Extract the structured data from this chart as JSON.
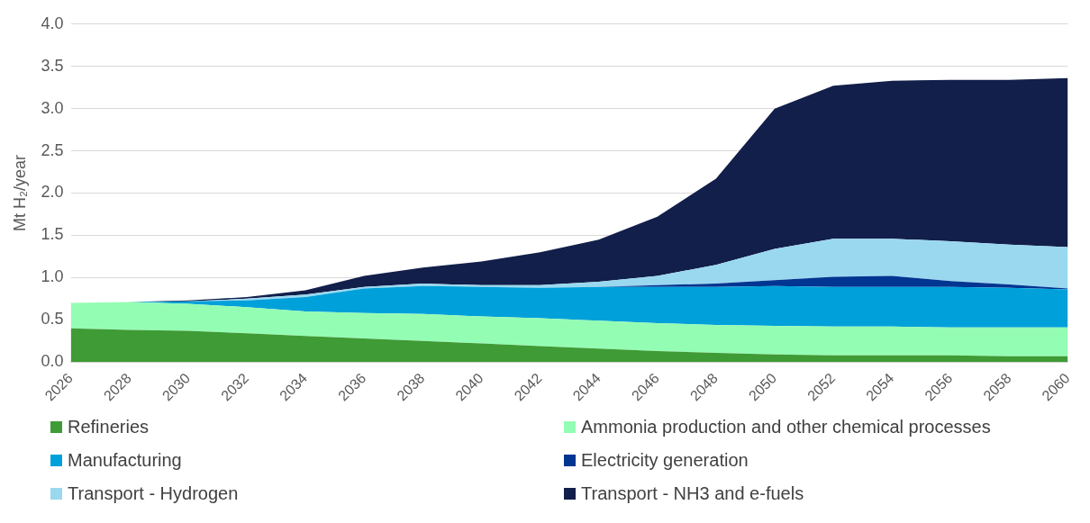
{
  "chart_data": {
    "type": "area",
    "stacked": true,
    "ylabel": "Mt H₂/year",
    "categories": [
      "2026",
      "2028",
      "2030",
      "2032",
      "2034",
      "2036",
      "2038",
      "2040",
      "2042",
      "2044",
      "2046",
      "2048",
      "2050",
      "2052",
      "2054",
      "2056",
      "2058",
      "2060"
    ],
    "ylim": [
      0,
      4
    ],
    "yticks": [
      {
        "value": 0,
        "label": "0.0"
      },
      {
        "value": 0.5,
        "label": "0.5"
      },
      {
        "value": 1,
        "label": "1.0"
      },
      {
        "value": 1.5,
        "label": "1.5"
      },
      {
        "value": 2,
        "label": "2.0"
      },
      {
        "value": 2.5,
        "label": "2.5"
      },
      {
        "value": 3,
        "label": "3.0"
      },
      {
        "value": 3.5,
        "label": "3.5"
      },
      {
        "value": 4,
        "label": "4.0"
      }
    ],
    "grid": "y",
    "legend": "bottom",
    "series": [
      {
        "name": "Refineries",
        "color": "#3f9b35",
        "values": [
          0.4,
          0.38,
          0.37,
          0.34,
          0.31,
          0.28,
          0.25,
          0.22,
          0.19,
          0.16,
          0.13,
          0.11,
          0.09,
          0.08,
          0.08,
          0.08,
          0.07,
          0.07
        ]
      },
      {
        "name": "Ammonia production and other chemical processes",
        "color": "#94fdb4",
        "values": [
          0.3,
          0.33,
          0.32,
          0.31,
          0.29,
          0.3,
          0.32,
          0.32,
          0.33,
          0.33,
          0.33,
          0.33,
          0.34,
          0.34,
          0.34,
          0.33,
          0.34,
          0.34
        ]
      },
      {
        "name": "Manufacturing",
        "color": "#00a0da",
        "values": [
          0,
          0,
          0.03,
          0.08,
          0.17,
          0.29,
          0.33,
          0.35,
          0.36,
          0.4,
          0.43,
          0.45,
          0.47,
          0.47,
          0.47,
          0.48,
          0.47,
          0.45
        ]
      },
      {
        "name": "Electricity generation",
        "color": "#003591",
        "values": [
          0,
          0,
          0,
          0,
          0,
          0,
          0,
          0,
          0,
          0,
          0.02,
          0.04,
          0.07,
          0.12,
          0.13,
          0.07,
          0.04,
          0.01
        ]
      },
      {
        "name": "Transport - Hydrogen",
        "color": "#9ad8f0",
        "values": [
          0,
          0,
          0,
          0.02,
          0.03,
          0.02,
          0.03,
          0.02,
          0.03,
          0.06,
          0.11,
          0.22,
          0.37,
          0.45,
          0.44,
          0.47,
          0.47,
          0.49
        ]
      },
      {
        "name": "Transport - NH3 and e-fuels",
        "color": "#121f4a",
        "values": [
          0,
          0,
          0.01,
          0.02,
          0.05,
          0.13,
          0.19,
          0.28,
          0.39,
          0.5,
          0.7,
          1.02,
          1.66,
          1.81,
          1.87,
          1.91,
          1.95,
          2.0
        ]
      }
    ]
  }
}
